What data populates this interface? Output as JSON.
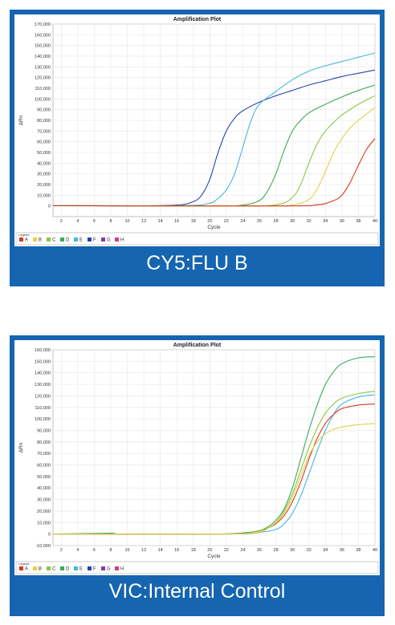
{
  "panels": [
    {
      "caption": "CY5:FLU B",
      "chart_data": {
        "type": "line",
        "title": "Amplification Plot",
        "xlabel": "Cycle",
        "ylabel": "ΔRn",
        "xlim": [
          1,
          40
        ],
        "ylim": [
          -10000,
          170000
        ],
        "yticks": [
          0,
          10000,
          20000,
          30000,
          40000,
          50000,
          60000,
          70000,
          80000,
          90000,
          100000,
          110000,
          120000,
          130000,
          140000,
          150000,
          160000,
          170000
        ],
        "xticks": [
          2,
          4,
          6,
          8,
          10,
          12,
          14,
          16,
          18,
          20,
          22,
          24,
          26,
          28,
          30,
          32,
          34,
          36,
          38,
          40
        ],
        "grid": true,
        "legend": "bottom",
        "legend_items": [
          {
            "label": "A",
            "color": "#d9381e"
          },
          {
            "label": "B",
            "color": "#e5d145"
          },
          {
            "label": "C",
            "color": "#8fc440"
          },
          {
            "label": "D",
            "color": "#3aaa5a"
          },
          {
            "label": "E",
            "color": "#45b8dc"
          },
          {
            "label": "F",
            "color": "#2446a8"
          },
          {
            "label": "G",
            "color": "#7b3fa6"
          },
          {
            "label": "H",
            "color": "#d23a8a"
          }
        ],
        "series": [
          {
            "label": "F",
            "color": "#2446a8",
            "values": [
              [
                1,
                500
              ],
              [
                10,
                0
              ],
              [
                16,
                800
              ],
              [
                18,
                4000
              ],
              [
                19,
                10000
              ],
              [
                20,
                25000
              ],
              [
                21,
                50000
              ],
              [
                22,
                70000
              ],
              [
                23,
                82000
              ],
              [
                24,
                89000
              ],
              [
                26,
                97000
              ],
              [
                28,
                103000
              ],
              [
                30,
                108000
              ],
              [
                32,
                113000
              ],
              [
                34,
                117000
              ],
              [
                36,
                121000
              ],
              [
                38,
                124000
              ],
              [
                40,
                127000
              ]
            ]
          },
          {
            "label": "E",
            "color": "#45b8dc",
            "values": [
              [
                1,
                500
              ],
              [
                12,
                0
              ],
              [
                18,
                600
              ],
              [
                20,
                2500
              ],
              [
                21,
                7000
              ],
              [
                22,
                15000
              ],
              [
                23,
                30000
              ],
              [
                24,
                55000
              ],
              [
                25,
                80000
              ],
              [
                26,
                95000
              ],
              [
                28,
                107000
              ],
              [
                30,
                118000
              ],
              [
                32,
                126000
              ],
              [
                34,
                131000
              ],
              [
                36,
                135000
              ],
              [
                38,
                139000
              ],
              [
                40,
                143000
              ]
            ]
          },
          {
            "label": "D",
            "color": "#3aaa5a",
            "values": [
              [
                1,
                300
              ],
              [
                20,
                0
              ],
              [
                24,
                800
              ],
              [
                26,
                5000
              ],
              [
                27,
                14000
              ],
              [
                28,
                30000
              ],
              [
                29,
                52000
              ],
              [
                30,
                70000
              ],
              [
                31,
                80000
              ],
              [
                32,
                87000
              ],
              [
                34,
                95000
              ],
              [
                36,
                102000
              ],
              [
                38,
                108000
              ],
              [
                40,
                113000
              ]
            ]
          },
          {
            "label": "C",
            "color": "#8fc440",
            "values": [
              [
                1,
                200
              ],
              [
                22,
                0
              ],
              [
                28,
                1000
              ],
              [
                30,
                8000
              ],
              [
                31,
                20000
              ],
              [
                32,
                40000
              ],
              [
                33,
                58000
              ],
              [
                34,
                70000
              ],
              [
                35,
                78000
              ],
              [
                36,
                85000
              ],
              [
                38,
                95000
              ],
              [
                40,
                103000
              ]
            ]
          },
          {
            "label": "B",
            "color": "#e5d145",
            "values": [
              [
                1,
                200
              ],
              [
                26,
                0
              ],
              [
                30,
                1000
              ],
              [
                32,
                6000
              ],
              [
                33,
                16000
              ],
              [
                34,
                32000
              ],
              [
                35,
                50000
              ],
              [
                36,
                63000
              ],
              [
                37,
                73000
              ],
              [
                38,
                80000
              ],
              [
                40,
                92000
              ]
            ]
          },
          {
            "label": "A",
            "color": "#d9381e",
            "values": [
              [
                1,
                100
              ],
              [
                28,
                0
              ],
              [
                33,
                1000
              ],
              [
                35,
                5000
              ],
              [
                36,
                10000
              ],
              [
                37,
                22000
              ],
              [
                38,
                38000
              ],
              [
                39,
                53000
              ],
              [
                40,
                63000
              ]
            ]
          }
        ]
      }
    },
    {
      "caption": "VIC:Internal Control",
      "chart_data": {
        "type": "line",
        "title": "Amplification Plot",
        "xlabel": "Cycle",
        "ylabel": "ΔRn",
        "xlim": [
          1,
          40
        ],
        "ylim": [
          -10000,
          160000
        ],
        "yticks": [
          -10000,
          0,
          10000,
          20000,
          30000,
          40000,
          50000,
          60000,
          70000,
          80000,
          90000,
          100000,
          110000,
          120000,
          130000,
          140000,
          150000,
          160000
        ],
        "xticks": [
          2,
          4,
          6,
          8,
          10,
          12,
          14,
          16,
          18,
          20,
          22,
          24,
          26,
          28,
          30,
          32,
          34,
          36,
          38,
          40
        ],
        "grid": true,
        "legend": "bottom",
        "legend_items": [
          {
            "label": "A",
            "color": "#d9381e"
          },
          {
            "label": "B",
            "color": "#e5d145"
          },
          {
            "label": "C",
            "color": "#8fc440"
          },
          {
            "label": "D",
            "color": "#3aaa5a"
          },
          {
            "label": "E",
            "color": "#45b8dc"
          },
          {
            "label": "F",
            "color": "#2446a8"
          },
          {
            "label": "G",
            "color": "#7b3fa6"
          },
          {
            "label": "H",
            "color": "#d23a8a"
          }
        ],
        "series": [
          {
            "label": "D",
            "color": "#3aaa5a",
            "values": [
              [
                1,
                0
              ],
              [
                8,
                800
              ],
              [
                9,
                0
              ],
              [
                20,
                0
              ],
              [
                24,
                1000
              ],
              [
                26,
                3000
              ],
              [
                27,
                6000
              ],
              [
                28,
                12000
              ],
              [
                29,
                22000
              ],
              [
                30,
                40000
              ],
              [
                31,
                65000
              ],
              [
                32,
                90000
              ],
              [
                33,
                112000
              ],
              [
                34,
                130000
              ],
              [
                35,
                141000
              ],
              [
                36,
                148000
              ],
              [
                38,
                153000
              ],
              [
                40,
                154000
              ]
            ]
          },
          {
            "label": "C",
            "color": "#8fc440",
            "values": [
              [
                1,
                0
              ],
              [
                22,
                0
              ],
              [
                25,
                1500
              ],
              [
                27,
                5000
              ],
              [
                28,
                10000
              ],
              [
                29,
                20000
              ],
              [
                30,
                35000
              ],
              [
                31,
                55000
              ],
              [
                32,
                75000
              ],
              [
                33,
                92000
              ],
              [
                34,
                105000
              ],
              [
                35,
                113000
              ],
              [
                36,
                118000
              ],
              [
                38,
                122000
              ],
              [
                40,
                124000
              ]
            ]
          },
          {
            "label": "E",
            "color": "#45b8dc",
            "values": [
              [
                1,
                0
              ],
              [
                22,
                0
              ],
              [
                26,
                1500
              ],
              [
                28,
                4000
              ],
              [
                29,
                9000
              ],
              [
                30,
                18000
              ],
              [
                31,
                33000
              ],
              [
                32,
                52000
              ],
              [
                33,
                72000
              ],
              [
                34,
                90000
              ],
              [
                35,
                104000
              ],
              [
                36,
                113000
              ],
              [
                38,
                119000
              ],
              [
                40,
                121000
              ]
            ]
          },
          {
            "label": "A",
            "color": "#d9381e",
            "values": [
              [
                1,
                0
              ],
              [
                22,
                0
              ],
              [
                26,
                2000
              ],
              [
                27,
                5000
              ],
              [
                28,
                9000
              ],
              [
                29,
                16000
              ],
              [
                30,
                28000
              ],
              [
                31,
                45000
              ],
              [
                32,
                65000
              ],
              [
                33,
                83000
              ],
              [
                34,
                96000
              ],
              [
                35,
                104000
              ],
              [
                36,
                109000
              ],
              [
                38,
                112000
              ],
              [
                40,
                113000
              ]
            ]
          },
          {
            "label": "B",
            "color": "#e5d145",
            "values": [
              [
                1,
                0
              ],
              [
                22,
                0
              ],
              [
                26,
                2000
              ],
              [
                27,
                5000
              ],
              [
                28,
                10000
              ],
              [
                29,
                18000
              ],
              [
                30,
                32000
              ],
              [
                31,
                50000
              ],
              [
                32,
                68000
              ],
              [
                33,
                80000
              ],
              [
                34,
                87000
              ],
              [
                35,
                91000
              ],
              [
                36,
                93000
              ],
              [
                38,
                95000
              ],
              [
                40,
                96000
              ]
            ]
          }
        ]
      }
    }
  ]
}
